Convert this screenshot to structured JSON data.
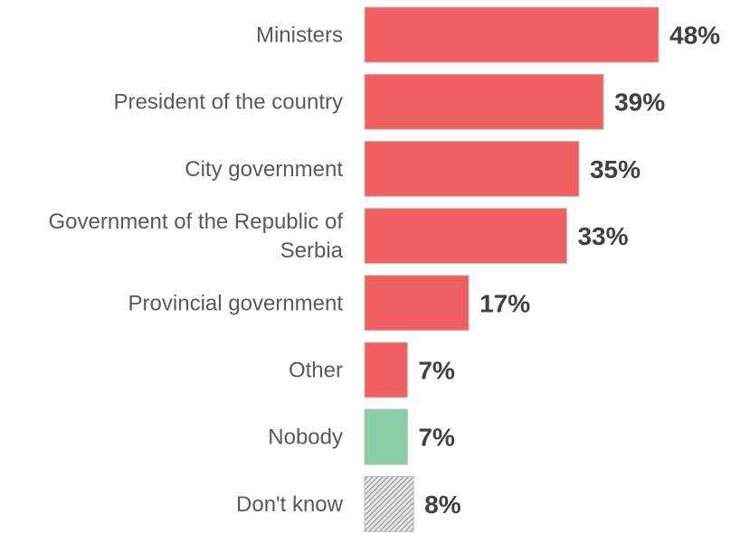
{
  "chart_data": {
    "type": "bar",
    "orientation": "horizontal",
    "categories": [
      "Ministers",
      "President of the country",
      "City government",
      "Government of the Republic of Serbia",
      "Provincial government",
      "Other",
      "Nobody",
      "Don't know"
    ],
    "values": [
      48,
      39,
      35,
      33,
      17,
      7,
      7,
      8
    ],
    "value_labels": [
      "48%",
      "39%",
      "35%",
      "33%",
      "17%",
      "7%",
      "7%",
      "8%"
    ],
    "unit": "%",
    "colors": [
      "#f06060",
      "#f06060",
      "#f06060",
      "#f06060",
      "#f06060",
      "#f06060",
      "#88cfa8",
      "hatched-gray"
    ],
    "xlim": [
      0,
      48
    ],
    "grid": false,
    "legend": "none"
  }
}
